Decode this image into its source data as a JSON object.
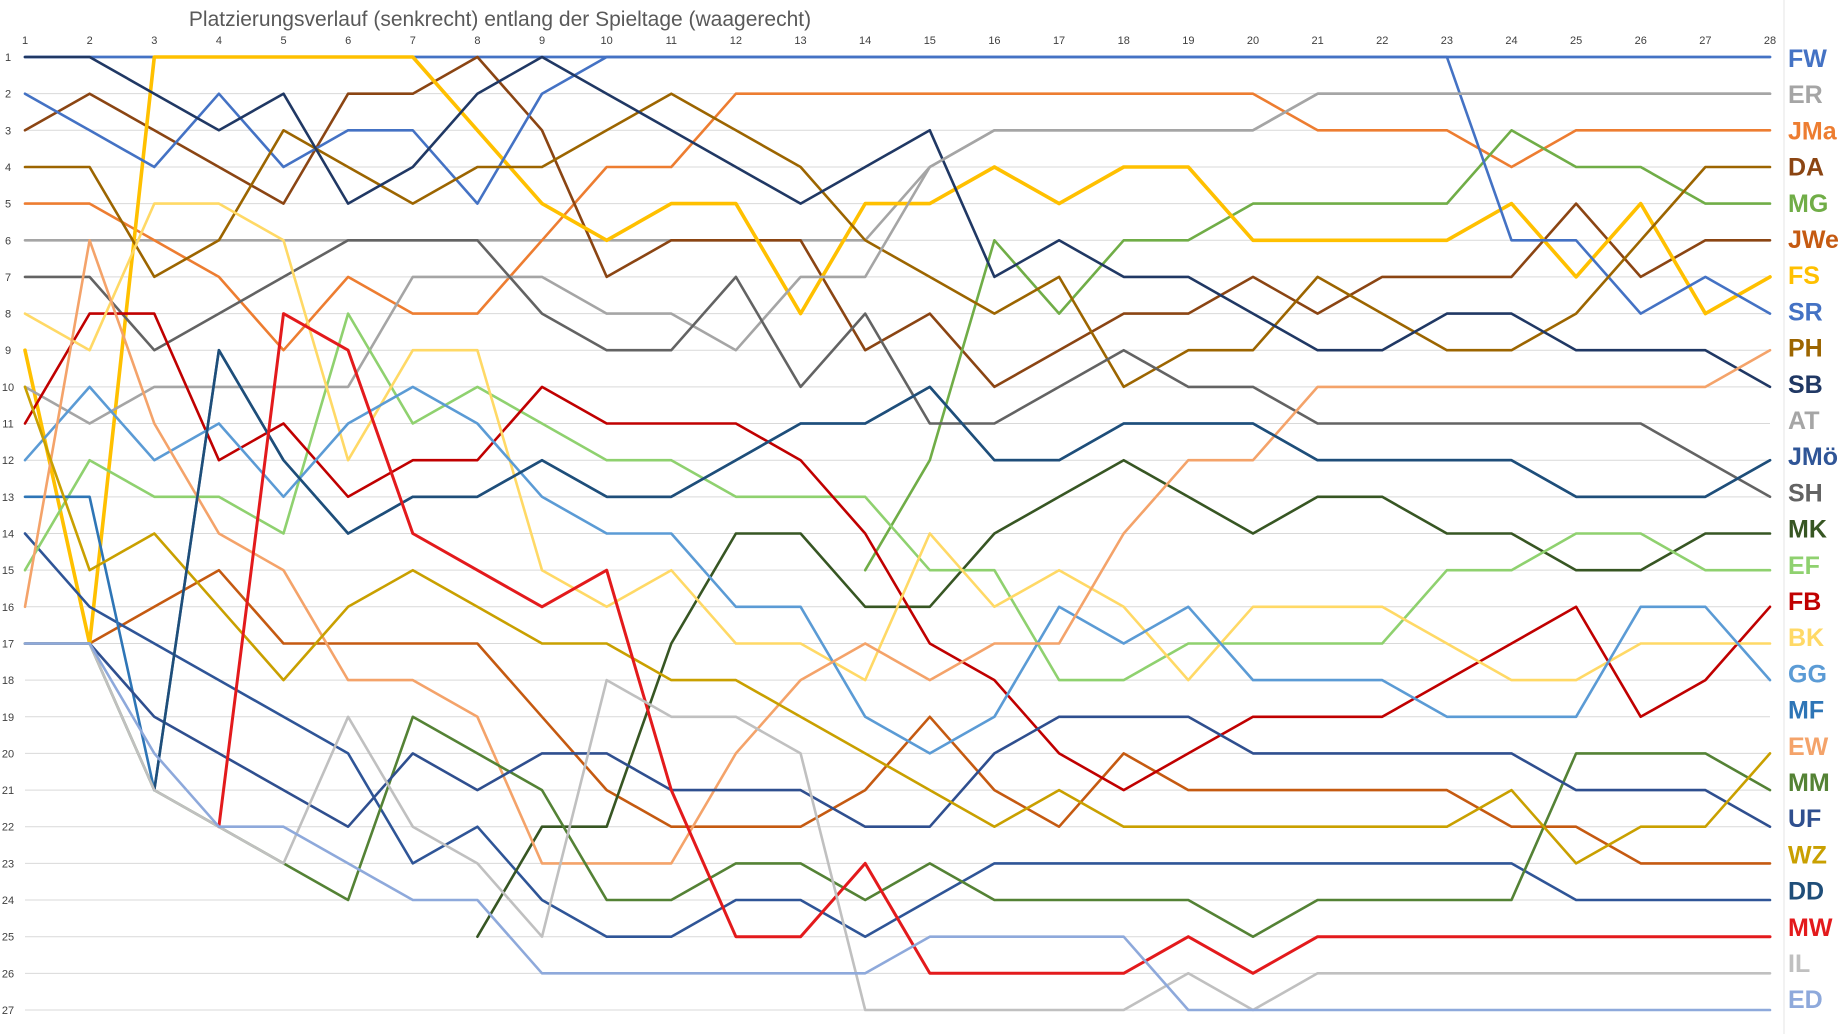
{
  "chart_data": {
    "type": "line",
    "title": "Platzierungsverlauf (senkrecht) entlang der Spieltage (waagerecht)",
    "xlabel": "",
    "ylabel": "",
    "x": [
      1,
      2,
      3,
      4,
      5,
      6,
      7,
      8,
      9,
      10,
      11,
      12,
      13,
      14,
      15,
      16,
      17,
      18,
      19,
      20,
      21,
      22,
      23,
      24,
      25,
      26,
      27,
      28
    ],
    "xlim": [
      1,
      28
    ],
    "ylim": [
      1,
      27
    ],
    "y_inverted": true,
    "grid": "horizontal",
    "legend": "right",
    "series": [
      {
        "name": "FW",
        "color": "#4472C4",
        "values": [
          1,
          1,
          1,
          1,
          1,
          1,
          1,
          1,
          1,
          1,
          1,
          1,
          1,
          1,
          1,
          1,
          1,
          1,
          1,
          1,
          1,
          1,
          1,
          1,
          1,
          1,
          1,
          1
        ]
      },
      {
        "name": "ER",
        "color": "#A5A5A5",
        "values": [
          6,
          6,
          6,
          6,
          6,
          6,
          6,
          6,
          6,
          6,
          6,
          6,
          6,
          6,
          4,
          3,
          3,
          3,
          3,
          3,
          2,
          2,
          2,
          2,
          2,
          2,
          2,
          2
        ]
      },
      {
        "name": "JMa",
        "color": "#ED7D31",
        "values": [
          5,
          5,
          6,
          7,
          9,
          7,
          8,
          8,
          6,
          4,
          4,
          2,
          2,
          2,
          2,
          2,
          2,
          2,
          2,
          2,
          3,
          3,
          3,
          4,
          3,
          3,
          3,
          3
        ]
      },
      {
        "name": "DA",
        "color": "#8B4513",
        "values": [
          3,
          2,
          3,
          4,
          5,
          2,
          2,
          1,
          3,
          7,
          6,
          6,
          6,
          9,
          8,
          10,
          9,
          8,
          8,
          7,
          8,
          7,
          7,
          7,
          5,
          7,
          6,
          6
        ]
      },
      {
        "name": "MG",
        "color": "#70AD47",
        "values": [
          null,
          null,
          null,
          null,
          null,
          null,
          null,
          null,
          null,
          null,
          null,
          null,
          null,
          15,
          12,
          6,
          8,
          6,
          6,
          5,
          5,
          5,
          5,
          3,
          4,
          4,
          5,
          5
        ]
      },
      {
        "name": "JWe",
        "color": "#C55A11",
        "values": [
          17,
          17,
          16,
          15,
          17,
          17,
          17,
          17,
          19,
          21,
          22,
          22,
          22,
          21,
          19,
          21,
          22,
          20,
          21,
          21,
          21,
          21,
          21,
          22,
          22,
          23,
          23,
          23
        ]
      },
      {
        "name": "FS",
        "color": "#FFC000",
        "values": [
          9,
          17,
          1,
          1,
          1,
          1,
          1,
          3,
          5,
          6,
          5,
          5,
          8,
          5,
          5,
          4,
          5,
          4,
          4,
          6,
          6,
          6,
          6,
          5,
          7,
          5,
          8,
          7
        ]
      },
      {
        "name": "SR",
        "color": "#4472C4",
        "values": [
          2,
          3,
          4,
          2,
          4,
          3,
          3,
          5,
          2,
          1,
          1,
          1,
          1,
          1,
          1,
          1,
          1,
          1,
          1,
          1,
          1,
          1,
          1,
          6,
          6,
          8,
          7,
          8
        ]
      },
      {
        "name": "PH",
        "color": "#9C6500",
        "values": [
          4,
          4,
          7,
          6,
          3,
          4,
          5,
          4,
          4,
          3,
          2,
          3,
          4,
          6,
          7,
          8,
          7,
          10,
          9,
          9,
          7,
          8,
          9,
          9,
          8,
          6,
          4,
          4
        ]
      },
      {
        "name": "SB",
        "color": "#203864",
        "values": [
          1,
          1,
          2,
          3,
          2,
          5,
          4,
          2,
          1,
          2,
          3,
          4,
          5,
          4,
          3,
          7,
          6,
          7,
          7,
          8,
          9,
          9,
          8,
          8,
          9,
          9,
          9,
          10
        ]
      },
      {
        "name": "AT",
        "color": "#A5A5A5",
        "values": [
          10,
          11,
          10,
          10,
          10,
          10,
          7,
          7,
          7,
          8,
          8,
          9,
          7,
          7,
          4,
          3,
          3,
          3,
          3,
          3,
          2,
          2,
          2,
          2,
          2,
          2,
          2,
          2
        ]
      },
      {
        "name": "JMö",
        "color": "#2F5597",
        "values": [
          14,
          16,
          17,
          18,
          19,
          20,
          23,
          22,
          24,
          25,
          25,
          24,
          24,
          25,
          24,
          23,
          23,
          23,
          23,
          23,
          23,
          23,
          23,
          23,
          24,
          24,
          24,
          24
        ]
      },
      {
        "name": "SH",
        "color": "#636363",
        "values": [
          7,
          7,
          9,
          8,
          7,
          6,
          6,
          6,
          8,
          9,
          9,
          7,
          10,
          8,
          11,
          11,
          10,
          9,
          10,
          10,
          11,
          11,
          11,
          11,
          11,
          11,
          12,
          13
        ]
      },
      {
        "name": "MK",
        "color": "#375623",
        "values": [
          null,
          null,
          null,
          null,
          null,
          null,
          null,
          25,
          22,
          22,
          17,
          14,
          14,
          16,
          16,
          14,
          13,
          12,
          13,
          14,
          13,
          13,
          14,
          14,
          15,
          15,
          14,
          14
        ]
      },
      {
        "name": "EF",
        "color": "#8FD16F",
        "values": [
          15,
          12,
          13,
          13,
          14,
          8,
          11,
          10,
          11,
          12,
          12,
          13,
          13,
          13,
          15,
          15,
          18,
          18,
          17,
          17,
          17,
          17,
          15,
          15,
          14,
          14,
          15,
          15
        ]
      },
      {
        "name": "FB",
        "color": "#C00000",
        "values": [
          11,
          8,
          8,
          12,
          11,
          13,
          12,
          12,
          10,
          11,
          11,
          11,
          12,
          14,
          17,
          18,
          20,
          21,
          20,
          19,
          19,
          19,
          18,
          17,
          16,
          19,
          18,
          16
        ]
      },
      {
        "name": "BK",
        "color": "#FFD966",
        "values": [
          8,
          9,
          5,
          5,
          6,
          12,
          9,
          9,
          15,
          16,
          15,
          17,
          17,
          18,
          14,
          16,
          15,
          16,
          18,
          16,
          16,
          16,
          17,
          18,
          18,
          17,
          17,
          17
        ]
      },
      {
        "name": "GG",
        "color": "#5B9BD5",
        "values": [
          12,
          10,
          12,
          11,
          13,
          11,
          10,
          11,
          13,
          14,
          14,
          16,
          16,
          19,
          20,
          19,
          16,
          17,
          16,
          18,
          18,
          18,
          19,
          19,
          19,
          16,
          16,
          18
        ]
      },
      {
        "name": "MF",
        "color": "#2E75B6",
        "values": [
          13,
          13,
          21,
          9,
          12,
          14,
          13,
          13,
          12,
          13,
          13,
          12,
          11,
          11,
          10,
          12,
          12,
          11,
          11,
          11,
          12,
          12,
          12,
          12,
          13,
          13,
          13,
          12
        ]
      },
      {
        "name": "EW",
        "color": "#F4A36A",
        "values": [
          16,
          6,
          11,
          14,
          15,
          18,
          18,
          19,
          23,
          23,
          23,
          20,
          18,
          17,
          18,
          17,
          17,
          14,
          12,
          12,
          10,
          10,
          10,
          10,
          10,
          10,
          10,
          9
        ]
      },
      {
        "name": "MM",
        "color": "#548235",
        "values": [
          17,
          17,
          21,
          22,
          23,
          24,
          19,
          20,
          21,
          24,
          24,
          23,
          23,
          24,
          23,
          24,
          24,
          24,
          24,
          25,
          24,
          24,
          24,
          24,
          20,
          20,
          20,
          21
        ]
      },
      {
        "name": "UF",
        "color": "#2F4F8F",
        "values": [
          17,
          17,
          19,
          20,
          21,
          22,
          20,
          21,
          20,
          20,
          21,
          21,
          21,
          22,
          22,
          20,
          19,
          19,
          19,
          20,
          20,
          20,
          20,
          20,
          21,
          21,
          21,
          22
        ]
      },
      {
        "name": "WZ",
        "color": "#C9A000",
        "values": [
          10,
          15,
          14,
          16,
          18,
          16,
          15,
          16,
          17,
          17,
          18,
          18,
          19,
          20,
          21,
          22,
          21,
          22,
          22,
          22,
          22,
          22,
          22,
          21,
          23,
          22,
          22,
          20
        ]
      },
      {
        "name": "DD",
        "color": "#1F4E79",
        "values": [
          null,
          null,
          21,
          9,
          12,
          14,
          13,
          13,
          12,
          13,
          13,
          12,
          11,
          11,
          10,
          12,
          12,
          11,
          11,
          11,
          12,
          12,
          12,
          12,
          13,
          13,
          13,
          12
        ]
      },
      {
        "name": "MW",
        "color": "#E31A1C",
        "values": [
          null,
          null,
          null,
          22,
          8,
          9,
          14,
          15,
          16,
          15,
          21,
          25,
          25,
          23,
          26,
          26,
          26,
          26,
          25,
          26,
          25,
          25,
          25,
          25,
          25,
          25,
          25,
          25
        ]
      },
      {
        "name": "IL",
        "color": "#C0C0C0",
        "values": [
          17,
          17,
          21,
          22,
          23,
          19,
          22,
          23,
          25,
          18,
          19,
          19,
          20,
          27,
          27,
          27,
          27,
          27,
          26,
          27,
          26,
          26,
          26,
          26,
          26,
          26,
          26,
          26
        ]
      },
      {
        "name": "ED",
        "color": "#8EA9DB",
        "values": [
          17,
          17,
          20,
          22,
          22,
          23,
          24,
          24,
          26,
          26,
          26,
          26,
          26,
          26,
          25,
          25,
          25,
          25,
          27,
          27,
          27,
          27,
          27,
          27,
          27,
          27,
          27,
          27
        ]
      }
    ]
  }
}
